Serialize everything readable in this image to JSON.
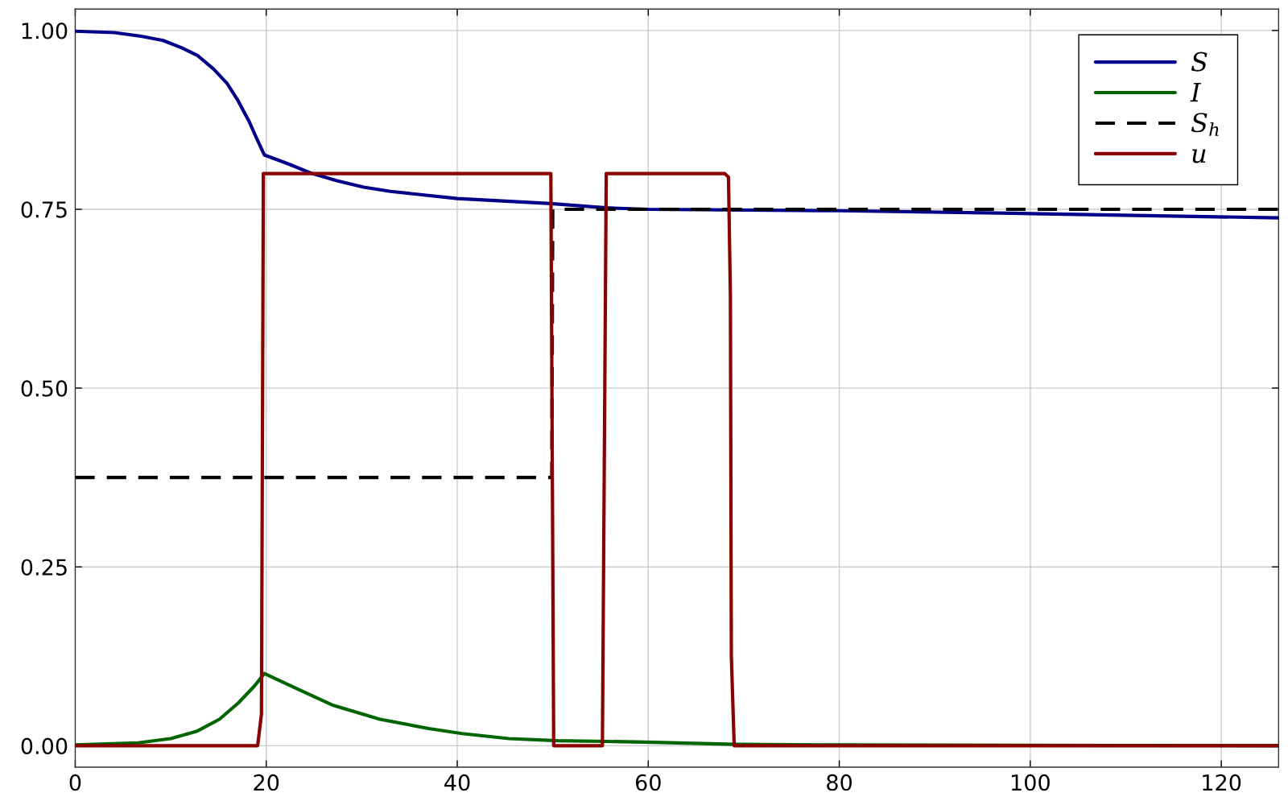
{
  "chart_data": {
    "type": "line",
    "xlim": [
      0,
      126
    ],
    "ylim": [
      -0.03,
      1.03
    ],
    "xticks": [
      0,
      20,
      40,
      60,
      80,
      100,
      120
    ],
    "yticks": [
      {
        "value": 0,
        "label": "0.00"
      },
      {
        "value": 0.25,
        "label": "0.25"
      },
      {
        "value": 0.5,
        "label": "0.50"
      },
      {
        "value": 0.75,
        "label": "0.75"
      },
      {
        "value": 1,
        "label": "1.00"
      }
    ],
    "grid": true,
    "legend": "top right",
    "marker": "none",
    "series": [
      {
        "name": "S",
        "color": "#00008b",
        "line_style": "solid",
        "x": [
          0,
          4.1,
          6.9,
          9.2,
          11.1,
          12.8,
          14.5,
          15.9,
          17.0,
          18.2,
          19.0,
          19.8,
          22.4,
          24.6,
          27.4,
          30.2,
          33,
          40,
          49.8,
          55.6,
          60,
          80,
          100,
          126
        ],
        "values": [
          0.999,
          0.997,
          0.992,
          0.986,
          0.976,
          0.965,
          0.946,
          0.926,
          0.903,
          0.873,
          0.849,
          0.826,
          0.813,
          0.801,
          0.79,
          0.781,
          0.775,
          0.765,
          0.758,
          0.752,
          0.75,
          0.748,
          0.744,
          0.738
        ]
      },
      {
        "name": "I",
        "color": "#006400",
        "line_style": "solid",
        "x": [
          0,
          6.6,
          10.0,
          12.7,
          15.1,
          17.1,
          18.8,
          19.8,
          23.5,
          26.9,
          31.9,
          37.0,
          40.5,
          45.4,
          50.5,
          55.5,
          59.6,
          69,
          80,
          126
        ],
        "values": [
          0.001,
          0.004,
          0.01,
          0.02,
          0.037,
          0.06,
          0.084,
          0.101,
          0.078,
          0.057,
          0.037,
          0.024,
          0.017,
          0.01,
          0.007,
          0.006,
          0.005,
          0.002,
          0.001,
          0.0
        ]
      },
      {
        "name": "S$_{h}$",
        "color": "#000000",
        "line_style": "dashed",
        "x": [
          0,
          49.9,
          50.0,
          126
        ],
        "values": [
          0.375,
          0.375,
          0.75,
          0.75
        ]
      },
      {
        "name": "u",
        "color": "#8b0000",
        "line_style": "solid",
        "x": [
          0,
          19.1,
          19.5,
          19.7,
          49.8,
          50.1,
          55.2,
          55.6,
          68.0,
          68.4,
          68.6,
          68.7,
          69.0,
          126
        ],
        "values": [
          0,
          0,
          0.044,
          0.8,
          0.8,
          0,
          0,
          0.8,
          0.8,
          0.795,
          0.63,
          0.125,
          0,
          0
        ]
      }
    ]
  }
}
